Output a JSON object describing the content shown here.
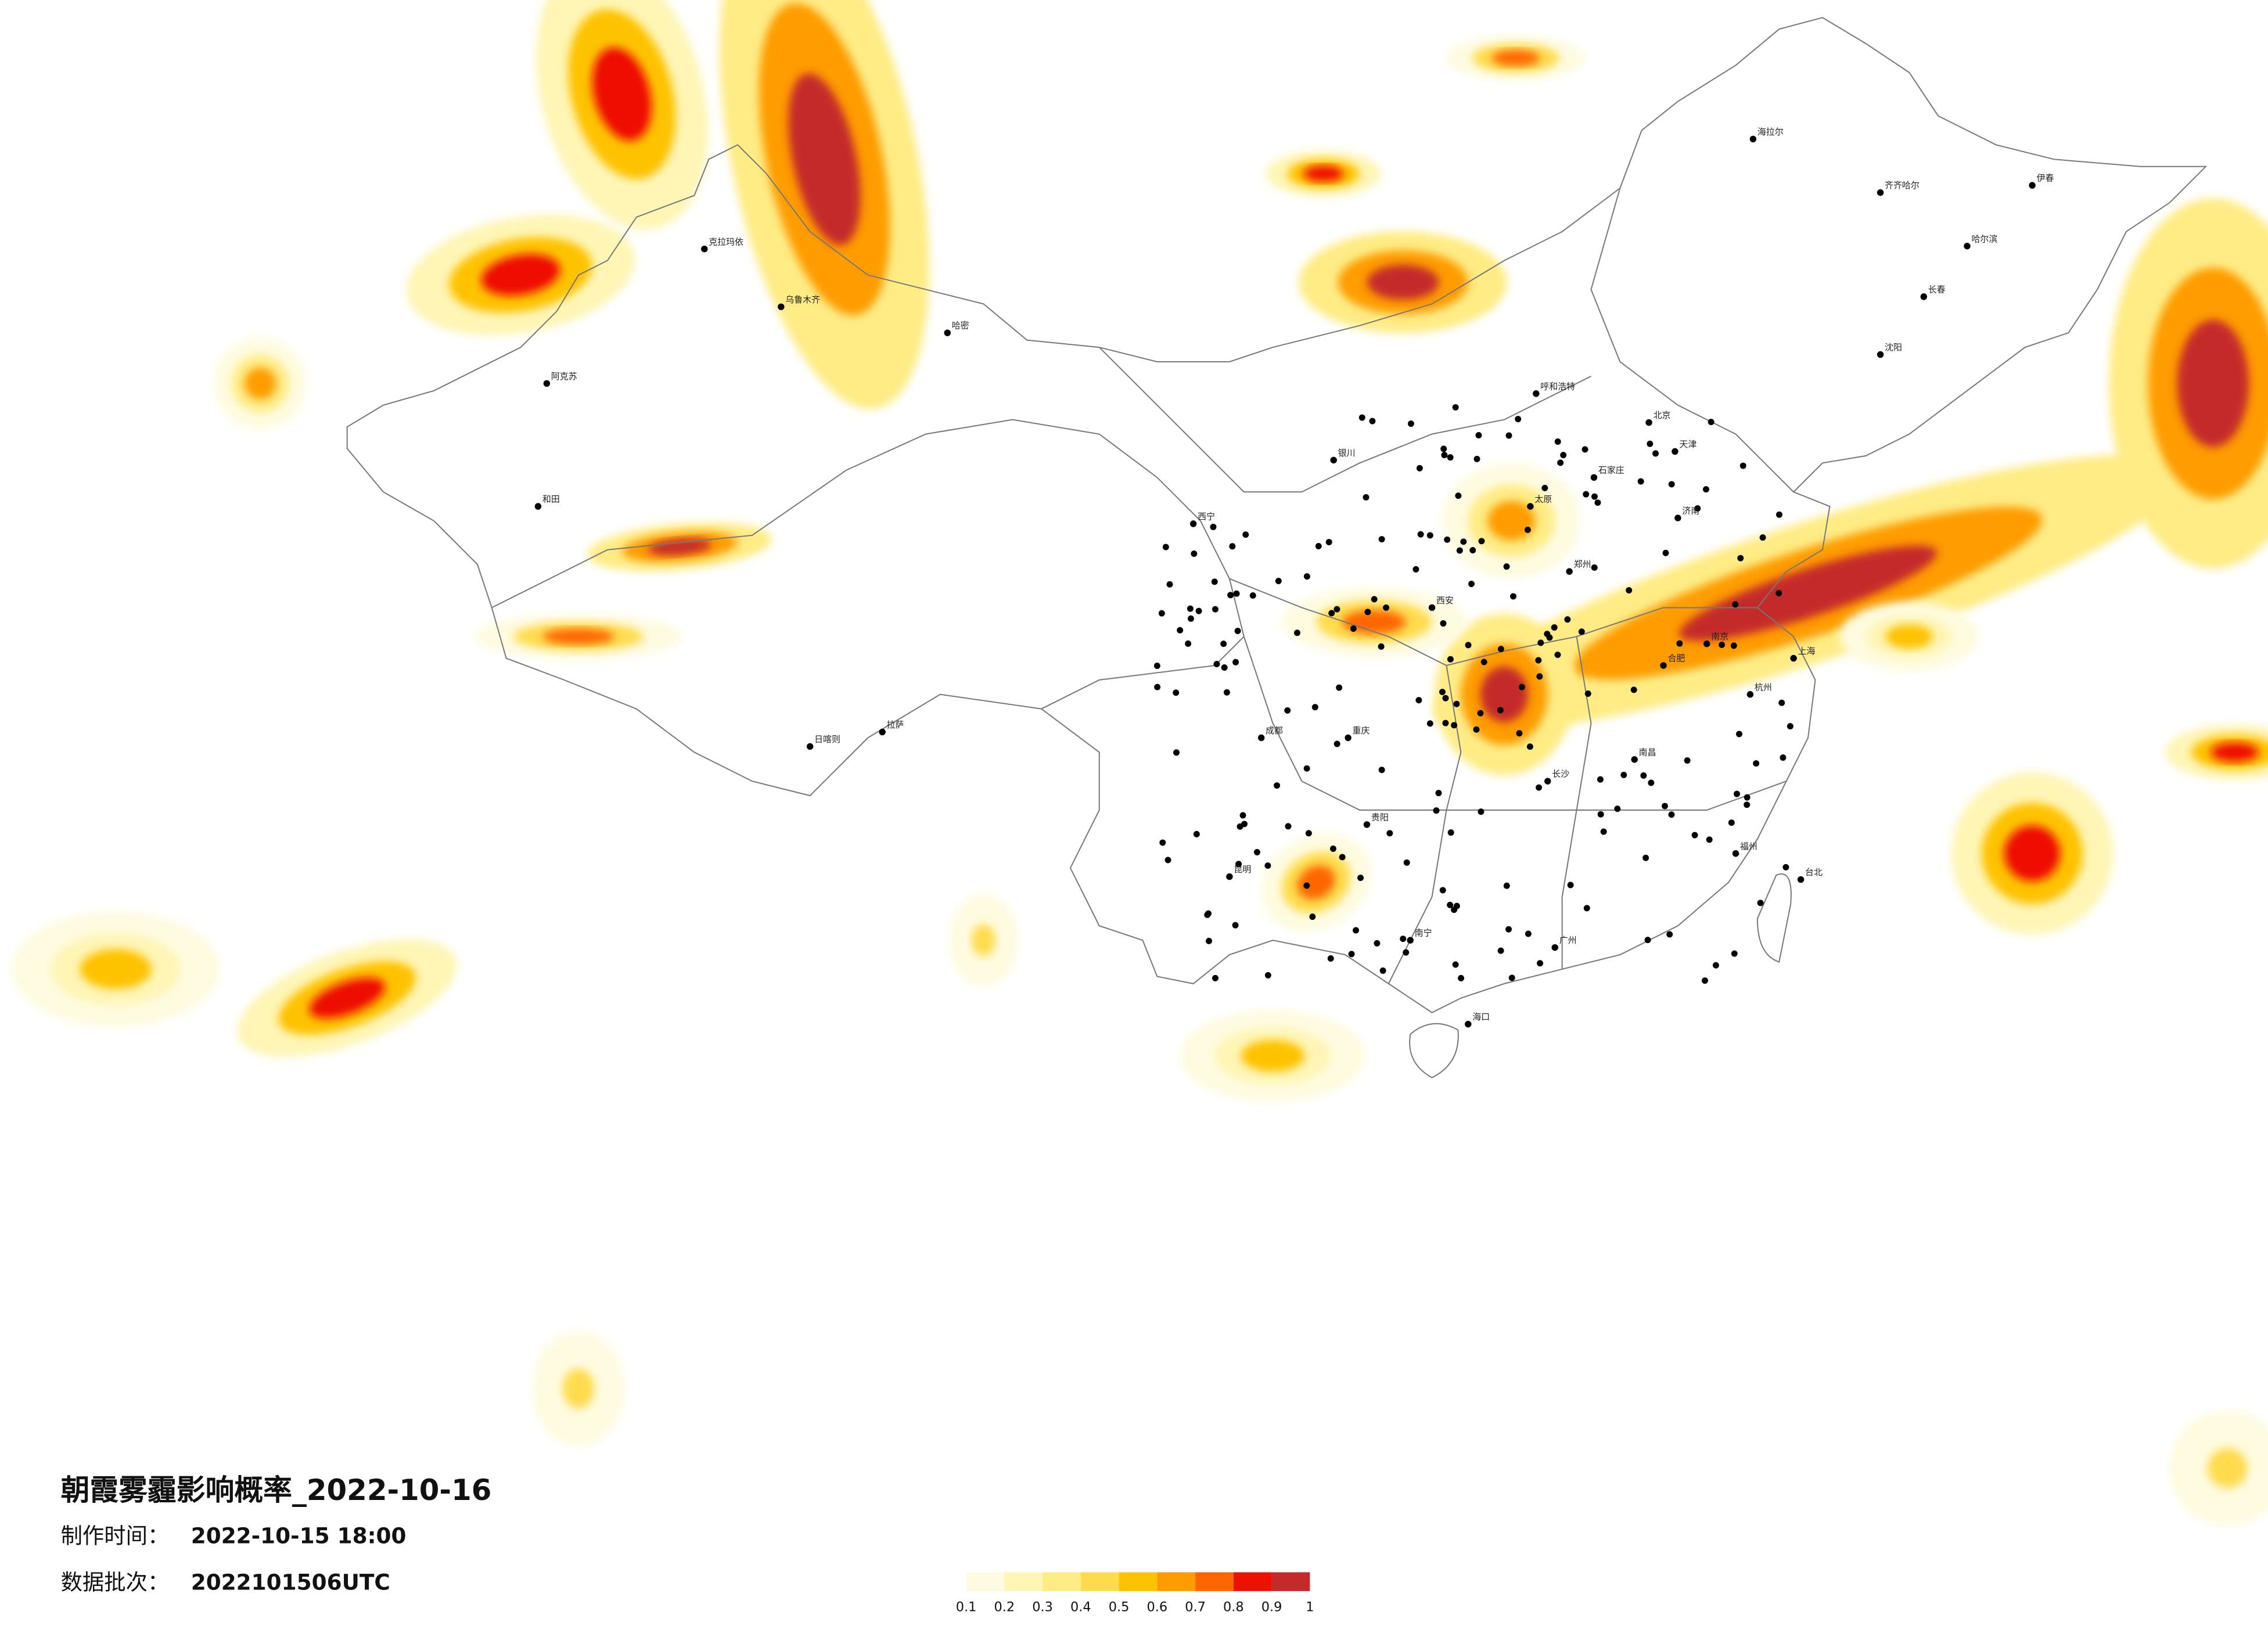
{
  "title": "朝霞雾霾影响概率_2022-10-16",
  "made_time": {
    "label": "制作时间：",
    "value": "2022-10-15 18:00"
  },
  "batch": {
    "label": "数据批次：",
    "value": "2022101506UTC"
  },
  "legend": {
    "colors": [
      "#fffbe0",
      "#fff5b5",
      "#ffec85",
      "#ffdc4d",
      "#ffc200",
      "#ff9c00",
      "#ff6600",
      "#ee1100",
      "#c42a2a"
    ],
    "ticks": [
      "0.1",
      "0.2",
      "0.3",
      "0.4",
      "0.5",
      "0.6",
      "0.7",
      "0.8",
      "0.9",
      "1"
    ]
  },
  "cities": [
    "克拉玛依",
    "阿克苏",
    "和田",
    "乌鲁木齐",
    "哈密",
    "拉萨",
    "日喀则",
    "西宁",
    "银川",
    "呼和浩特",
    "北京",
    "天津",
    "石家庄",
    "太原",
    "济南",
    "郑州",
    "西安",
    "成都",
    "重庆",
    "贵阳",
    "昆明",
    "南宁",
    "广州",
    "长沙",
    "南昌",
    "杭州",
    "上海",
    "南京",
    "合肥",
    "福州",
    "哈尔滨",
    "长春",
    "沈阳",
    "海口",
    "台北",
    "齐齐哈尔",
    "海拉尔",
    "伊春"
  ]
}
